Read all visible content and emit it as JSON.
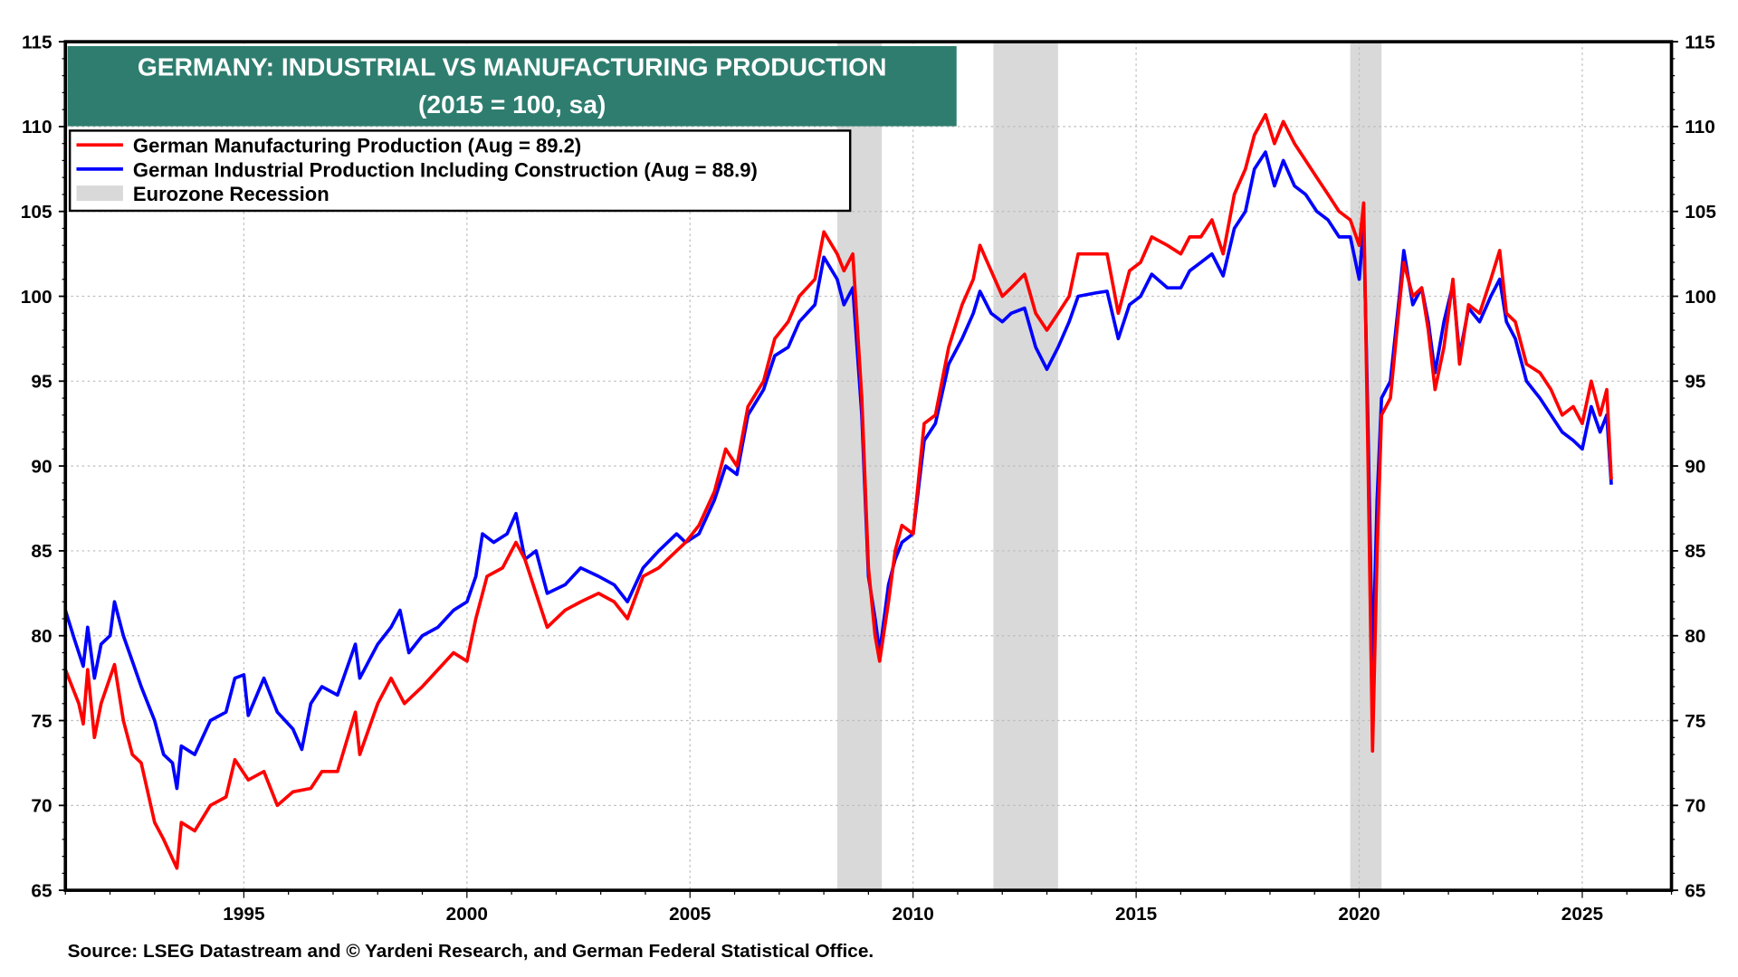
{
  "chart_data": {
    "type": "line",
    "title": "GERMANY: INDUSTRIAL VS MANUFACTURING PRODUCTION",
    "subtitle": "(2015 = 100, sa)",
    "xlabel": "",
    "ylabel": "",
    "xlim": [
      1991,
      2027
    ],
    "ylim": [
      65,
      115
    ],
    "y_ticks": [
      "65",
      "70",
      "75",
      "80",
      "85",
      "90",
      "95",
      "100",
      "105",
      "110",
      "115"
    ],
    "x_ticks": [
      "1995",
      "2000",
      "2005",
      "2010",
      "2015",
      "2020",
      "2025"
    ],
    "grid": true,
    "legend_position": "top-left",
    "source": "Source: LSEG Datastream and © Yardeni Research, and German Federal Statistical Office.",
    "colors": {
      "manufacturing": "#ff0000",
      "industrial": "#0000ff",
      "recession": "#d9d9d9",
      "title_bg": "#2e7d6f"
    },
    "recessions": [
      {
        "label": "Eurozone Recession",
        "start": 2008.3,
        "end": 2009.3
      },
      {
        "label": "Eurozone Recession",
        "start": 2011.8,
        "end": 2013.25
      },
      {
        "label": "Eurozone Recession",
        "start": 2019.8,
        "end": 2020.5
      }
    ],
    "legend": [
      {
        "label": "German Manufacturing Production (Aug = 89.2)",
        "color": "#ff0000"
      },
      {
        "label": "German Industrial Production Including Construction (Aug = 88.9)",
        "color": "#0000ff"
      },
      {
        "label": "Eurozone Recession",
        "color": "#d9d9d9"
      }
    ],
    "series": [
      {
        "name": "German Manufacturing Production",
        "color": "#ff0000",
        "points": [
          [
            1991.0,
            78
          ],
          [
            1991.3,
            76
          ],
          [
            1991.4,
            74.8
          ],
          [
            1991.5,
            78
          ],
          [
            1991.65,
            74
          ],
          [
            1991.8,
            76
          ],
          [
            1992.1,
            78.3
          ],
          [
            1992.3,
            75
          ],
          [
            1992.5,
            73
          ],
          [
            1992.7,
            72.5
          ],
          [
            1993.0,
            69
          ],
          [
            1993.2,
            68
          ],
          [
            1993.5,
            66.3
          ],
          [
            1993.6,
            69
          ],
          [
            1993.9,
            68.5
          ],
          [
            1994.25,
            70
          ],
          [
            1994.6,
            70.5
          ],
          [
            1994.8,
            72.7
          ],
          [
            1995.1,
            71.5
          ],
          [
            1995.45,
            72
          ],
          [
            1995.75,
            70
          ],
          [
            1996.1,
            70.8
          ],
          [
            1996.5,
            71
          ],
          [
            1996.75,
            72
          ],
          [
            1997.1,
            72
          ],
          [
            1997.5,
            75.5
          ],
          [
            1997.6,
            73
          ],
          [
            1998.0,
            76
          ],
          [
            1998.3,
            77.5
          ],
          [
            1998.6,
            76
          ],
          [
            1999.0,
            77
          ],
          [
            1999.35,
            78
          ],
          [
            1999.7,
            79
          ],
          [
            2000.0,
            78.5
          ],
          [
            2000.2,
            81
          ],
          [
            2000.45,
            83.5
          ],
          [
            2000.8,
            84
          ],
          [
            2001.1,
            85.5
          ],
          [
            2001.3,
            84.5
          ],
          [
            2001.55,
            82.5
          ],
          [
            2001.8,
            80.5
          ],
          [
            2002.2,
            81.5
          ],
          [
            2002.55,
            82
          ],
          [
            2002.95,
            82.5
          ],
          [
            2003.3,
            82
          ],
          [
            2003.6,
            81
          ],
          [
            2003.95,
            83.5
          ],
          [
            2004.3,
            84
          ],
          [
            2004.7,
            85
          ],
          [
            2004.9,
            85.5
          ],
          [
            2005.2,
            86.5
          ],
          [
            2005.55,
            88.5
          ],
          [
            2005.8,
            91
          ],
          [
            2006.05,
            90
          ],
          [
            2006.3,
            93.5
          ],
          [
            2006.65,
            95
          ],
          [
            2006.9,
            97.5
          ],
          [
            2007.2,
            98.5
          ],
          [
            2007.45,
            100
          ],
          [
            2007.8,
            101
          ],
          [
            2008.0,
            103.8
          ],
          [
            2008.3,
            102.5
          ],
          [
            2008.45,
            101.5
          ],
          [
            2008.65,
            102.5
          ],
          [
            2008.85,
            94
          ],
          [
            2009.0,
            84
          ],
          [
            2009.15,
            80
          ],
          [
            2009.25,
            78.5
          ],
          [
            2009.45,
            82
          ],
          [
            2009.6,
            85
          ],
          [
            2009.75,
            86.5
          ],
          [
            2010.0,
            86
          ],
          [
            2010.25,
            92.5
          ],
          [
            2010.5,
            93
          ],
          [
            2010.8,
            97
          ],
          [
            2011.1,
            99.5
          ],
          [
            2011.35,
            101
          ],
          [
            2011.5,
            103
          ],
          [
            2011.75,
            101.5
          ],
          [
            2012.0,
            100
          ],
          [
            2012.2,
            100.5
          ],
          [
            2012.5,
            101.3
          ],
          [
            2012.75,
            99
          ],
          [
            2013.0,
            98
          ],
          [
            2013.25,
            99
          ],
          [
            2013.5,
            100
          ],
          [
            2013.7,
            102.5
          ],
          [
            2014.1,
            102.5
          ],
          [
            2014.35,
            102.5
          ],
          [
            2014.6,
            99
          ],
          [
            2014.85,
            101.5
          ],
          [
            2015.1,
            102
          ],
          [
            2015.35,
            103.5
          ],
          [
            2015.7,
            103
          ],
          [
            2016.0,
            102.5
          ],
          [
            2016.2,
            103.5
          ],
          [
            2016.45,
            103.5
          ],
          [
            2016.7,
            104.5
          ],
          [
            2016.95,
            102.5
          ],
          [
            2017.2,
            106
          ],
          [
            2017.45,
            107.5
          ],
          [
            2017.65,
            109.5
          ],
          [
            2017.9,
            110.7
          ],
          [
            2018.1,
            109
          ],
          [
            2018.3,
            110.3
          ],
          [
            2018.55,
            109
          ],
          [
            2018.8,
            108
          ],
          [
            2019.05,
            107
          ],
          [
            2019.3,
            106
          ],
          [
            2019.55,
            105
          ],
          [
            2019.8,
            104.5
          ],
          [
            2020.0,
            103
          ],
          [
            2020.1,
            105.5
          ],
          [
            2020.2,
            90
          ],
          [
            2020.3,
            73.2
          ],
          [
            2020.4,
            85
          ],
          [
            2020.5,
            93
          ],
          [
            2020.7,
            94
          ],
          [
            2020.9,
            99.5
          ],
          [
            2021.0,
            102
          ],
          [
            2021.2,
            100
          ],
          [
            2021.4,
            100.5
          ],
          [
            2021.55,
            98
          ],
          [
            2021.7,
            94.5
          ],
          [
            2021.9,
            97
          ],
          [
            2022.1,
            101
          ],
          [
            2022.25,
            96
          ],
          [
            2022.45,
            99.5
          ],
          [
            2022.7,
            99
          ],
          [
            2022.95,
            101
          ],
          [
            2023.15,
            102.7
          ],
          [
            2023.3,
            99
          ],
          [
            2023.5,
            98.5
          ],
          [
            2023.75,
            96
          ],
          [
            2024.05,
            95.5
          ],
          [
            2024.3,
            94.5
          ],
          [
            2024.55,
            93
          ],
          [
            2024.8,
            93.5
          ],
          [
            2025.0,
            92.5
          ],
          [
            2025.2,
            95
          ],
          [
            2025.4,
            93
          ],
          [
            2025.55,
            94.5
          ],
          [
            2025.65,
            89.2
          ]
        ]
      },
      {
        "name": "German Industrial Production Including Construction",
        "color": "#0000ff",
        "points": [
          [
            1991.0,
            81.5
          ],
          [
            1991.2,
            79.8
          ],
          [
            1991.4,
            78.2
          ],
          [
            1991.5,
            80.5
          ],
          [
            1991.65,
            77.5
          ],
          [
            1991.8,
            79.5
          ],
          [
            1992.0,
            80
          ],
          [
            1992.1,
            82
          ],
          [
            1992.3,
            80
          ],
          [
            1992.5,
            78.5
          ],
          [
            1992.7,
            77
          ],
          [
            1993.0,
            75
          ],
          [
            1993.2,
            73
          ],
          [
            1993.4,
            72.5
          ],
          [
            1993.5,
            71
          ],
          [
            1993.6,
            73.5
          ],
          [
            1993.9,
            73
          ],
          [
            1994.25,
            75
          ],
          [
            1994.6,
            75.5
          ],
          [
            1994.8,
            77.5
          ],
          [
            1995.0,
            77.7
          ],
          [
            1995.1,
            75.3
          ],
          [
            1995.45,
            77.5
          ],
          [
            1995.75,
            75.5
          ],
          [
            1996.1,
            74.5
          ],
          [
            1996.3,
            73.3
          ],
          [
            1996.5,
            76
          ],
          [
            1996.75,
            77
          ],
          [
            1997.1,
            76.5
          ],
          [
            1997.5,
            79.5
          ],
          [
            1997.6,
            77.5
          ],
          [
            1998.0,
            79.5
          ],
          [
            1998.3,
            80.5
          ],
          [
            1998.5,
            81.5
          ],
          [
            1998.7,
            79
          ],
          [
            1999.0,
            80
          ],
          [
            1999.35,
            80.5
          ],
          [
            1999.7,
            81.5
          ],
          [
            2000.0,
            82
          ],
          [
            2000.2,
            83.5
          ],
          [
            2000.35,
            86
          ],
          [
            2000.6,
            85.5
          ],
          [
            2000.9,
            86
          ],
          [
            2001.1,
            87.2
          ],
          [
            2001.3,
            84.5
          ],
          [
            2001.55,
            85
          ],
          [
            2001.8,
            82.5
          ],
          [
            2002.2,
            83
          ],
          [
            2002.55,
            84
          ],
          [
            2002.95,
            83.5
          ],
          [
            2003.3,
            83
          ],
          [
            2003.6,
            82
          ],
          [
            2003.95,
            84
          ],
          [
            2004.3,
            85
          ],
          [
            2004.7,
            86
          ],
          [
            2004.9,
            85.5
          ],
          [
            2005.2,
            86
          ],
          [
            2005.55,
            88
          ],
          [
            2005.8,
            90
          ],
          [
            2006.05,
            89.5
          ],
          [
            2006.3,
            93
          ],
          [
            2006.65,
            94.5
          ],
          [
            2006.9,
            96.5
          ],
          [
            2007.2,
            97
          ],
          [
            2007.45,
            98.5
          ],
          [
            2007.8,
            99.5
          ],
          [
            2008.0,
            102.3
          ],
          [
            2008.3,
            101
          ],
          [
            2008.45,
            99.5
          ],
          [
            2008.65,
            100.5
          ],
          [
            2008.85,
            93
          ],
          [
            2009.0,
            83.5
          ],
          [
            2009.15,
            81
          ],
          [
            2009.25,
            79
          ],
          [
            2009.45,
            83
          ],
          [
            2009.6,
            84.5
          ],
          [
            2009.75,
            85.5
          ],
          [
            2010.0,
            86
          ],
          [
            2010.25,
            91.5
          ],
          [
            2010.5,
            92.5
          ],
          [
            2010.8,
            96
          ],
          [
            2011.1,
            97.5
          ],
          [
            2011.35,
            99
          ],
          [
            2011.5,
            100.3
          ],
          [
            2011.75,
            99
          ],
          [
            2012.0,
            98.5
          ],
          [
            2012.2,
            99
          ],
          [
            2012.5,
            99.3
          ],
          [
            2012.75,
            97
          ],
          [
            2013.0,
            95.7
          ],
          [
            2013.25,
            97
          ],
          [
            2013.5,
            98.5
          ],
          [
            2013.7,
            100
          ],
          [
            2014.1,
            100.2
          ],
          [
            2014.35,
            100.3
          ],
          [
            2014.6,
            97.5
          ],
          [
            2014.85,
            99.5
          ],
          [
            2015.1,
            100
          ],
          [
            2015.35,
            101.3
          ],
          [
            2015.7,
            100.5
          ],
          [
            2016.0,
            100.5
          ],
          [
            2016.2,
            101.5
          ],
          [
            2016.45,
            102
          ],
          [
            2016.7,
            102.5
          ],
          [
            2016.95,
            101.2
          ],
          [
            2017.2,
            104
          ],
          [
            2017.45,
            105
          ],
          [
            2017.65,
            107.5
          ],
          [
            2017.9,
            108.5
          ],
          [
            2018.1,
            106.5
          ],
          [
            2018.3,
            108
          ],
          [
            2018.55,
            106.5
          ],
          [
            2018.8,
            106
          ],
          [
            2019.05,
            105
          ],
          [
            2019.3,
            104.5
          ],
          [
            2019.55,
            103.5
          ],
          [
            2019.8,
            103.5
          ],
          [
            2020.0,
            101
          ],
          [
            2020.1,
            104.3
          ],
          [
            2020.2,
            92
          ],
          [
            2020.3,
            78
          ],
          [
            2020.4,
            88
          ],
          [
            2020.5,
            94
          ],
          [
            2020.7,
            95
          ],
          [
            2020.9,
            100
          ],
          [
            2021.0,
            102.7
          ],
          [
            2021.2,
            99.5
          ],
          [
            2021.4,
            100.5
          ],
          [
            2021.55,
            98.5
          ],
          [
            2021.7,
            95.5
          ],
          [
            2021.9,
            98.5
          ],
          [
            2022.1,
            100.7
          ],
          [
            2022.25,
            96.5
          ],
          [
            2022.45,
            99.3
          ],
          [
            2022.7,
            98.5
          ],
          [
            2022.95,
            100
          ],
          [
            2023.15,
            101
          ],
          [
            2023.3,
            98.5
          ],
          [
            2023.5,
            97.5
          ],
          [
            2023.75,
            95
          ],
          [
            2024.05,
            94
          ],
          [
            2024.3,
            93
          ],
          [
            2024.55,
            92
          ],
          [
            2024.8,
            91.5
          ],
          [
            2025.0,
            91
          ],
          [
            2025.2,
            93.5
          ],
          [
            2025.4,
            92
          ],
          [
            2025.55,
            93
          ],
          [
            2025.65,
            88.9
          ]
        ]
      }
    ]
  }
}
